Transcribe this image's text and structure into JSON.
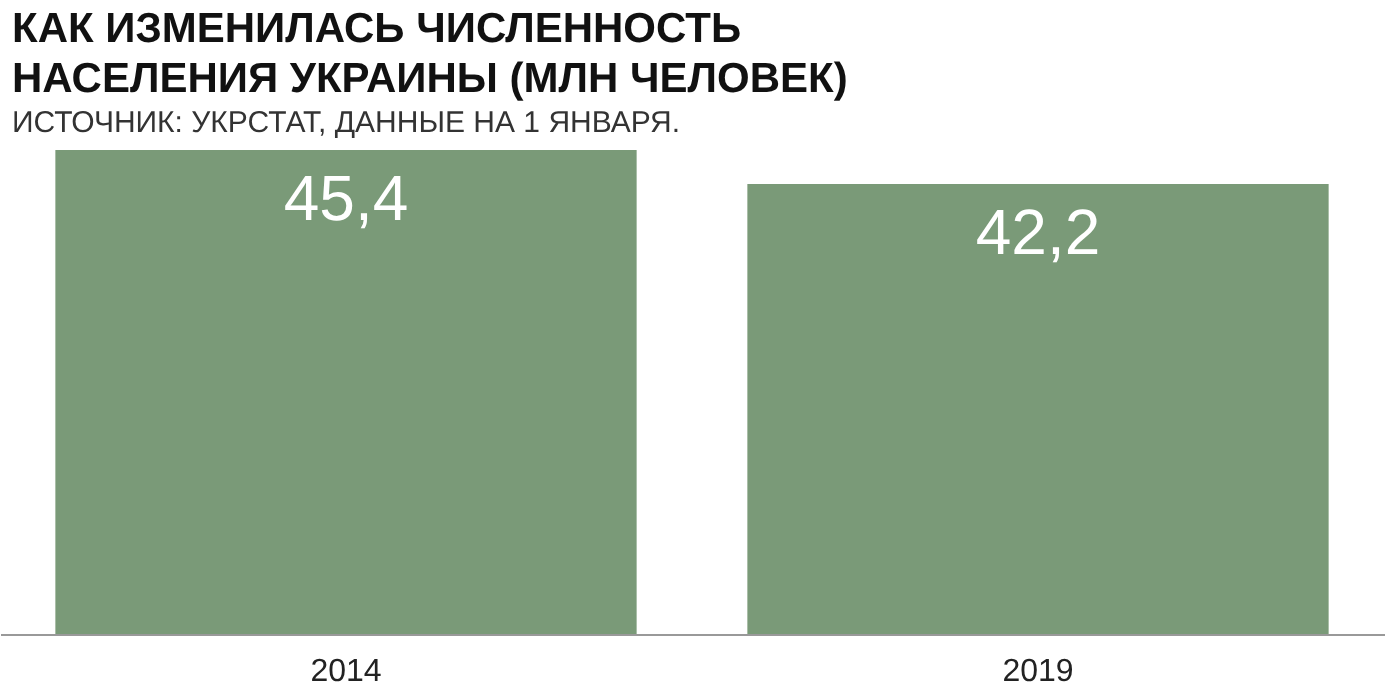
{
  "chart_data": {
    "type": "bar",
    "title": "КАК ИЗМЕНИЛАСЬ ЧИСЛЕННОСТЬ НАСЕЛЕНИЯ УКРАИНЫ (МЛН ЧЕЛОВЕК)",
    "subtitle": "ИСТОЧНИК: УКРСТАТ, ДАННЫЕ НА 1 ЯНВАРЯ.",
    "categories": [
      "2014",
      "2019"
    ],
    "values": [
      45.4,
      42.2
    ],
    "value_labels": [
      "45,4",
      "42,2"
    ],
    "color": "#7a9a78"
  }
}
